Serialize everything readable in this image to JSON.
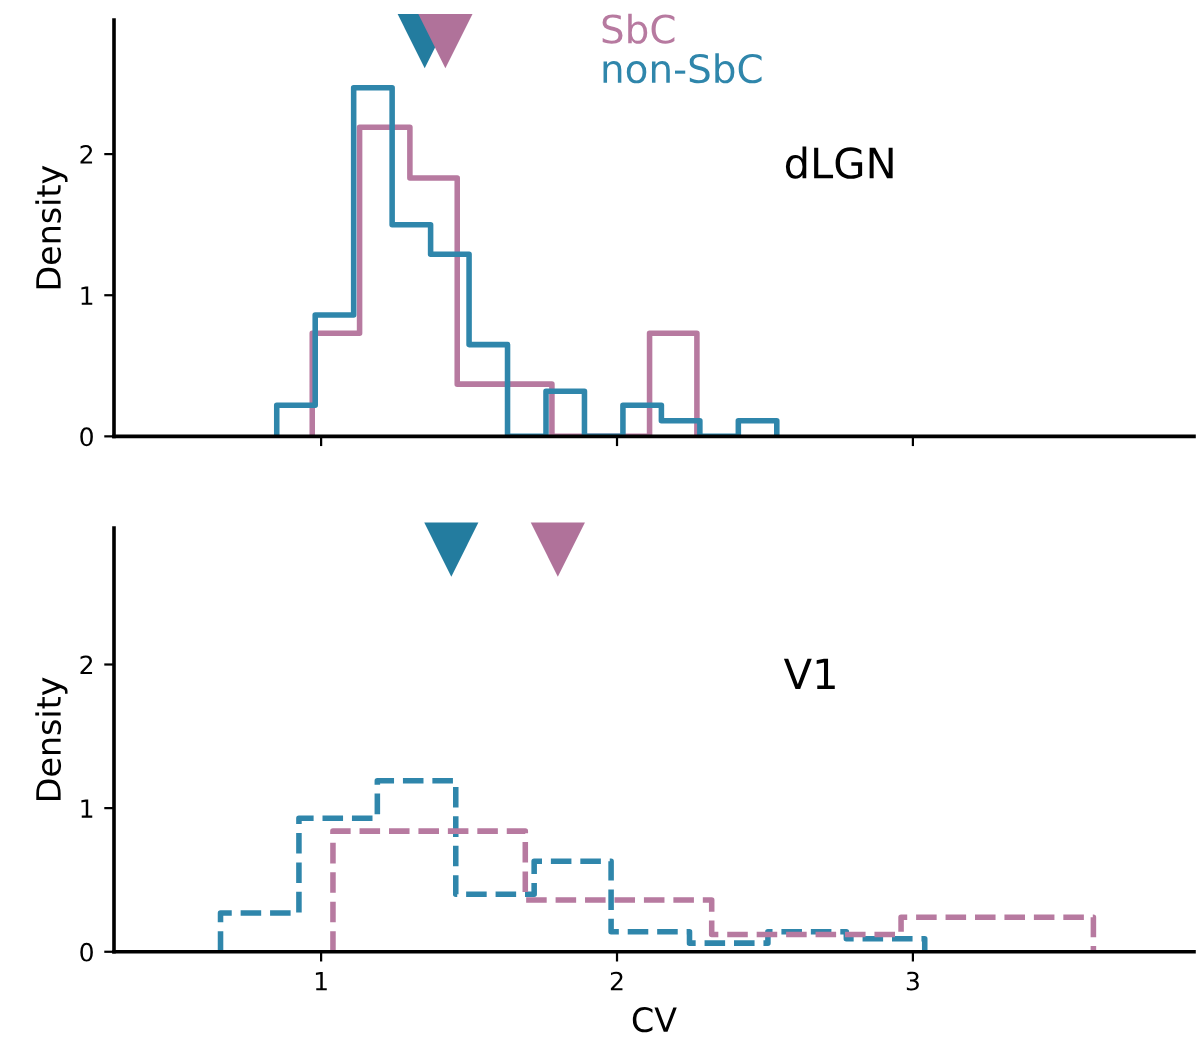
{
  "chart_data": [
    {
      "type": "histogram",
      "ylabel": "Density",
      "annotations": [
        "dLGN"
      ],
      "xlim": [
        0.3,
        3.95
      ],
      "ylim": [
        0,
        2.95
      ],
      "xticks": [
        1,
        2,
        3
      ],
      "yticks": [
        0,
        1,
        2
      ],
      "tick_labels": "y",
      "legend": "top",
      "grid": false,
      "series": [
        {
          "name": "SbC",
          "color": "#b77aa0",
          "line_style": "solid",
          "bins": [
            0.97,
            1.13,
            1.3,
            1.46,
            1.62,
            1.78,
            1.95,
            2.11,
            2.27
          ],
          "values": [
            0.73,
            2.19,
            1.83,
            0.37,
            0.37,
            0,
            0,
            0.73
          ]
        },
        {
          "name": "non-SbC",
          "color": "#2f86ab",
          "line_style": "solid",
          "bins": [
            0.85,
            0.98,
            1.11,
            1.24,
            1.37,
            1.5,
            1.63,
            1.76,
            1.89,
            2.02,
            2.15,
            2.28,
            2.41,
            2.54
          ],
          "values": [
            0.22,
            0.86,
            2.47,
            1.5,
            1.29,
            0.65,
            0,
            0.32,
            0,
            0.22,
            0.11,
            0,
            0.11
          ]
        },
        {
          "type": "scatter",
          "marker": "triangle",
          "color": "#237c9f",
          "x": [
            1.35
          ],
          "values": [
            2.8
          ]
        },
        {
          "type": "scatter",
          "marker": "triangle",
          "color": "#b0729a",
          "x": [
            1.42
          ],
          "values": [
            2.8
          ]
        }
      ]
    },
    {
      "type": "histogram",
      "xlabel": "CV",
      "ylabel": "Density",
      "annotations": [
        "V1"
      ],
      "xlim": [
        0.3,
        3.95
      ],
      "ylim": [
        0,
        2.95
      ],
      "xticks": [
        1,
        2,
        3
      ],
      "yticks": [
        0,
        1,
        2
      ],
      "grid": false,
      "series": [
        {
          "color": "#2f86ab",
          "line_style": "dashed",
          "bins": [
            0.66,
            0.925,
            1.19,
            1.455,
            1.72,
            1.98,
            2.245,
            2.51,
            2.775,
            3.04
          ],
          "values": [
            0.27,
            0.93,
            1.19,
            0.4,
            0.63,
            0.14,
            0.06,
            0.14,
            0.09
          ]
        },
        {
          "color": "#b77aa0",
          "line_style": "dashed",
          "bins": [
            1.04,
            1.69,
            2.32,
            2.96,
            3.61
          ],
          "values": [
            0.84,
            0.36,
            0.12,
            0.24
          ]
        },
        {
          "type": "scatter",
          "marker": "triangle",
          "color": "#237c9f",
          "x": [
            1.44
          ],
          "values": [
            2.8
          ]
        },
        {
          "type": "scatter",
          "marker": "triangle",
          "color": "#b0729a",
          "x": [
            1.8
          ],
          "values": [
            2.8
          ]
        }
      ]
    }
  ]
}
